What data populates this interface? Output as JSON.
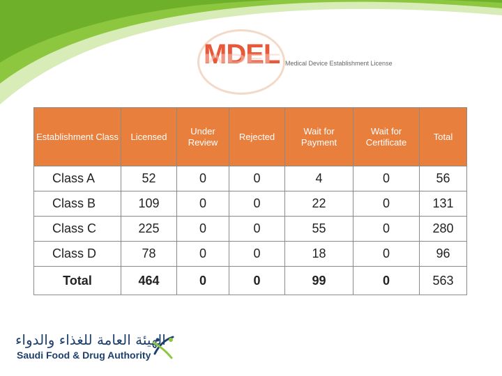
{
  "logo": {
    "wordmark": "MDEL",
    "subtitle": "Medical Device Establishment License"
  },
  "table": {
    "headers": [
      "Establishment Class",
      "Licensed",
      "Under Review",
      "Rejected",
      "Wait for Payment",
      "Wait for Certificate",
      "Total"
    ],
    "rows": [
      [
        "Class A",
        "52",
        "0",
        "0",
        "4",
        "0",
        "56"
      ],
      [
        "Class B",
        "109",
        "0",
        "0",
        "22",
        "0",
        "131"
      ],
      [
        "Class C",
        "225",
        "0",
        "0",
        "55",
        "0",
        "280"
      ],
      [
        "Class D",
        "78",
        "0",
        "0",
        "18",
        "0",
        "96"
      ]
    ],
    "total_row": [
      "Total",
      "464",
      "0",
      "0",
      "99",
      "0",
      "563"
    ]
  },
  "footer": {
    "arabic_name": "الهيئة العامة للغذاء والدواء",
    "english_name": "Saudi Food & Drug Authority"
  },
  "colors": {
    "header_bg": "#e87f3d",
    "accent_green": "#8dc63f",
    "logo_red": "#e8593a",
    "brand_navy": "#1d3f6e"
  }
}
